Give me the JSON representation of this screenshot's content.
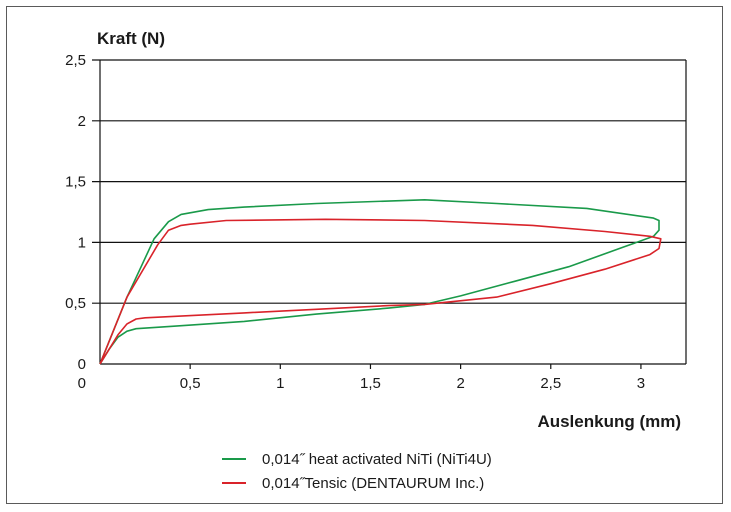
{
  "chart_data": {
    "type": "line",
    "ylabel": "Kraft (N)",
    "xlabel": "Auslenkung (mm)",
    "xlim": [
      0,
      3.25
    ],
    "ylim": [
      0,
      2.5
    ],
    "x_ticks": [
      "0",
      "0,5",
      "1",
      "1,5",
      "2",
      "2,5",
      "3"
    ],
    "y_ticks": [
      "0",
      "0,5",
      "1",
      "1,5",
      "2",
      "2,5"
    ],
    "grid": "horizontal",
    "legend_position": "bottom",
    "series": [
      {
        "name": "0,014˝ heat activated NiTi (NiTi4U)",
        "color": "#1a9a4a",
        "points": [
          [
            0,
            0
          ],
          [
            0.05,
            0.12
          ],
          [
            0.1,
            0.22
          ],
          [
            0.15,
            0.27
          ],
          [
            0.2,
            0.29
          ],
          [
            0.4,
            0.31
          ],
          [
            0.8,
            0.35
          ],
          [
            1.2,
            0.41
          ],
          [
            1.6,
            0.46
          ],
          [
            1.8,
            0.49
          ],
          [
            2.0,
            0.56
          ],
          [
            2.3,
            0.68
          ],
          [
            2.6,
            0.8
          ],
          [
            2.9,
            0.96
          ],
          [
            3.07,
            1.05
          ],
          [
            3.1,
            1.1
          ],
          [
            3.1,
            1.18
          ],
          [
            3.07,
            1.2
          ],
          [
            2.7,
            1.28
          ],
          [
            2.2,
            1.32
          ],
          [
            1.8,
            1.35
          ],
          [
            1.2,
            1.32
          ],
          [
            0.8,
            1.29
          ],
          [
            0.6,
            1.27
          ],
          [
            0.45,
            1.23
          ],
          [
            0.38,
            1.17
          ],
          [
            0.3,
            1.03
          ],
          [
            0.15,
            0.55
          ],
          [
            0,
            0
          ]
        ]
      },
      {
        "name": "0,014˝Tensic (DENTAURUM Inc.)",
        "color": "#d9232a",
        "points": [
          [
            0,
            0
          ],
          [
            0.05,
            0.12
          ],
          [
            0.1,
            0.24
          ],
          [
            0.15,
            0.33
          ],
          [
            0.2,
            0.37
          ],
          [
            0.25,
            0.38
          ],
          [
            0.8,
            0.42
          ],
          [
            1.2,
            0.45
          ],
          [
            1.6,
            0.48
          ],
          [
            1.8,
            0.49
          ],
          [
            2.2,
            0.55
          ],
          [
            2.5,
            0.66
          ],
          [
            2.8,
            0.78
          ],
          [
            3.05,
            0.9
          ],
          [
            3.1,
            0.95
          ],
          [
            3.11,
            1.03
          ],
          [
            3.05,
            1.05
          ],
          [
            2.8,
            1.09
          ],
          [
            2.4,
            1.14
          ],
          [
            1.8,
            1.18
          ],
          [
            1.25,
            1.19
          ],
          [
            0.7,
            1.18
          ],
          [
            0.5,
            1.15
          ],
          [
            0.45,
            1.14
          ],
          [
            0.38,
            1.1
          ],
          [
            0.32,
            0.98
          ],
          [
            0.15,
            0.55
          ],
          [
            0,
            0
          ]
        ]
      }
    ]
  }
}
